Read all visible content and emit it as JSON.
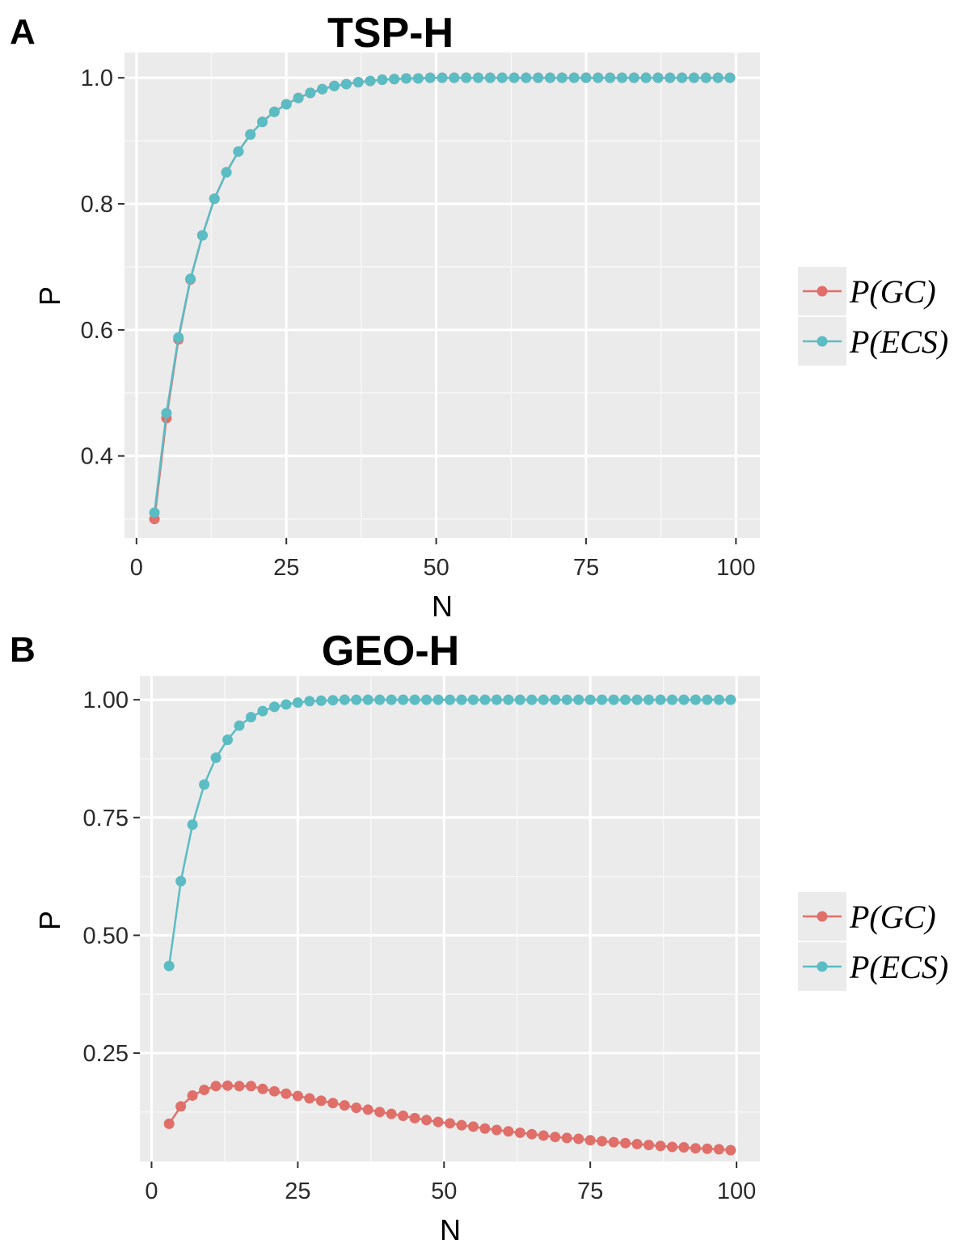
{
  "figure": {
    "panels": [
      {
        "letter": "A",
        "title": "TSP-H",
        "xlabel": "N",
        "ylabel": "P"
      },
      {
        "letter": "B",
        "title": "GEO-H",
        "xlabel": "N",
        "ylabel": "P"
      }
    ]
  },
  "chart_data": [
    {
      "type": "line",
      "title": "TSP-H",
      "xlabel": "N",
      "ylabel": "P",
      "xlim": [
        -2,
        104
      ],
      "ylim": [
        0.27,
        1.04
      ],
      "x_ticks": [
        0,
        25,
        50,
        75,
        100
      ],
      "x_tick_labels": [
        "0",
        "25",
        "50",
        "75",
        "100"
      ],
      "y_ticks": [
        0.4,
        0.6,
        0.8,
        1.0
      ],
      "y_tick_labels": [
        "0.4",
        "0.6",
        "0.8",
        "1.0"
      ],
      "grid": true,
      "legend": "right",
      "markers": true,
      "series": [
        {
          "name": "P(GC)",
          "color": "#e06f69",
          "x": [
            3,
            5,
            7,
            9,
            11,
            13,
            15,
            17,
            19,
            21,
            23,
            25,
            27,
            29,
            31,
            33,
            35,
            37,
            39,
            41,
            43,
            45,
            47,
            49,
            51,
            53,
            55,
            57,
            59,
            61,
            63,
            65,
            67,
            69,
            71,
            73,
            75,
            77,
            79,
            81,
            83,
            85,
            87,
            89,
            91,
            93,
            95,
            97,
            99
          ],
          "values": [
            0.3,
            0.46,
            0.585,
            0.68,
            0.75,
            0.808,
            0.85,
            0.883,
            0.91,
            0.93,
            0.946,
            0.958,
            0.968,
            0.976,
            0.982,
            0.987,
            0.99,
            0.993,
            0.995,
            0.997,
            0.998,
            0.999,
            0.999,
            1.0,
            1.0,
            1.0,
            1.0,
            1.0,
            1.0,
            1.0,
            1.0,
            1.0,
            1.0,
            1.0,
            1.0,
            1.0,
            1.0,
            1.0,
            1.0,
            1.0,
            1.0,
            1.0,
            1.0,
            1.0,
            1.0,
            1.0,
            1.0,
            1.0,
            1.0
          ]
        },
        {
          "name": "P(ECS)",
          "color": "#5bbcc3",
          "x": [
            3,
            5,
            7,
            9,
            11,
            13,
            15,
            17,
            19,
            21,
            23,
            25,
            27,
            29,
            31,
            33,
            35,
            37,
            39,
            41,
            43,
            45,
            47,
            49,
            51,
            53,
            55,
            57,
            59,
            61,
            63,
            65,
            67,
            69,
            71,
            73,
            75,
            77,
            79,
            81,
            83,
            85,
            87,
            89,
            91,
            93,
            95,
            97,
            99
          ],
          "values": [
            0.31,
            0.468,
            0.588,
            0.681,
            0.75,
            0.808,
            0.85,
            0.883,
            0.91,
            0.93,
            0.946,
            0.958,
            0.968,
            0.976,
            0.982,
            0.987,
            0.99,
            0.993,
            0.995,
            0.997,
            0.998,
            0.999,
            0.999,
            1.0,
            1.0,
            1.0,
            1.0,
            1.0,
            1.0,
            1.0,
            1.0,
            1.0,
            1.0,
            1.0,
            1.0,
            1.0,
            1.0,
            1.0,
            1.0,
            1.0,
            1.0,
            1.0,
            1.0,
            1.0,
            1.0,
            1.0,
            1.0,
            1.0,
            1.0
          ]
        }
      ]
    },
    {
      "type": "line",
      "title": "GEO-H",
      "xlabel": "N",
      "ylabel": "P",
      "xlim": [
        -2,
        104
      ],
      "ylim": [
        0.02,
        1.05
      ],
      "x_ticks": [
        0,
        25,
        50,
        75,
        100
      ],
      "x_tick_labels": [
        "0",
        "25",
        "50",
        "75",
        "100"
      ],
      "y_ticks": [
        0.25,
        0.5,
        0.75,
        1.0
      ],
      "y_tick_labels": [
        "0.25",
        "0.50",
        "0.75",
        "1.00"
      ],
      "grid": true,
      "legend": "right",
      "markers": true,
      "series": [
        {
          "name": "P(GC)",
          "color": "#e06f69",
          "x": [
            3,
            5,
            7,
            9,
            11,
            13,
            15,
            17,
            19,
            21,
            23,
            25,
            27,
            29,
            31,
            33,
            35,
            37,
            39,
            41,
            43,
            45,
            47,
            49,
            51,
            53,
            55,
            57,
            59,
            61,
            63,
            65,
            67,
            69,
            71,
            73,
            75,
            77,
            79,
            81,
            83,
            85,
            87,
            89,
            91,
            93,
            95,
            97,
            99
          ],
          "values": [
            0.1,
            0.137,
            0.16,
            0.172,
            0.18,
            0.181,
            0.18,
            0.18,
            0.174,
            0.169,
            0.164,
            0.159,
            0.154,
            0.149,
            0.144,
            0.139,
            0.134,
            0.13,
            0.125,
            0.121,
            0.117,
            0.112,
            0.108,
            0.104,
            0.101,
            0.097,
            0.094,
            0.09,
            0.087,
            0.084,
            0.081,
            0.078,
            0.075,
            0.072,
            0.07,
            0.068,
            0.065,
            0.063,
            0.061,
            0.059,
            0.057,
            0.055,
            0.053,
            0.051,
            0.05,
            0.048,
            0.047,
            0.046,
            0.044
          ]
        },
        {
          "name": "P(ECS)",
          "color": "#5bbcc3",
          "x": [
            3,
            5,
            7,
            9,
            11,
            13,
            15,
            17,
            19,
            21,
            23,
            25,
            27,
            29,
            31,
            33,
            35,
            37,
            39,
            41,
            43,
            45,
            47,
            49,
            51,
            53,
            55,
            57,
            59,
            61,
            63,
            65,
            67,
            69,
            71,
            73,
            75,
            77,
            79,
            81,
            83,
            85,
            87,
            89,
            91,
            93,
            95,
            97,
            99
          ],
          "values": [
            0.435,
            0.615,
            0.735,
            0.82,
            0.877,
            0.915,
            0.945,
            0.963,
            0.976,
            0.985,
            0.99,
            0.994,
            0.997,
            0.998,
            0.999,
            1.0,
            1.0,
            1.0,
            1.0,
            1.0,
            1.0,
            1.0,
            1.0,
            1.0,
            1.0,
            1.0,
            1.0,
            1.0,
            1.0,
            1.0,
            1.0,
            1.0,
            1.0,
            1.0,
            1.0,
            1.0,
            1.0,
            1.0,
            1.0,
            1.0,
            1.0,
            1.0,
            1.0,
            1.0,
            1.0,
            1.0,
            1.0,
            1.0,
            1.0
          ]
        }
      ]
    }
  ]
}
